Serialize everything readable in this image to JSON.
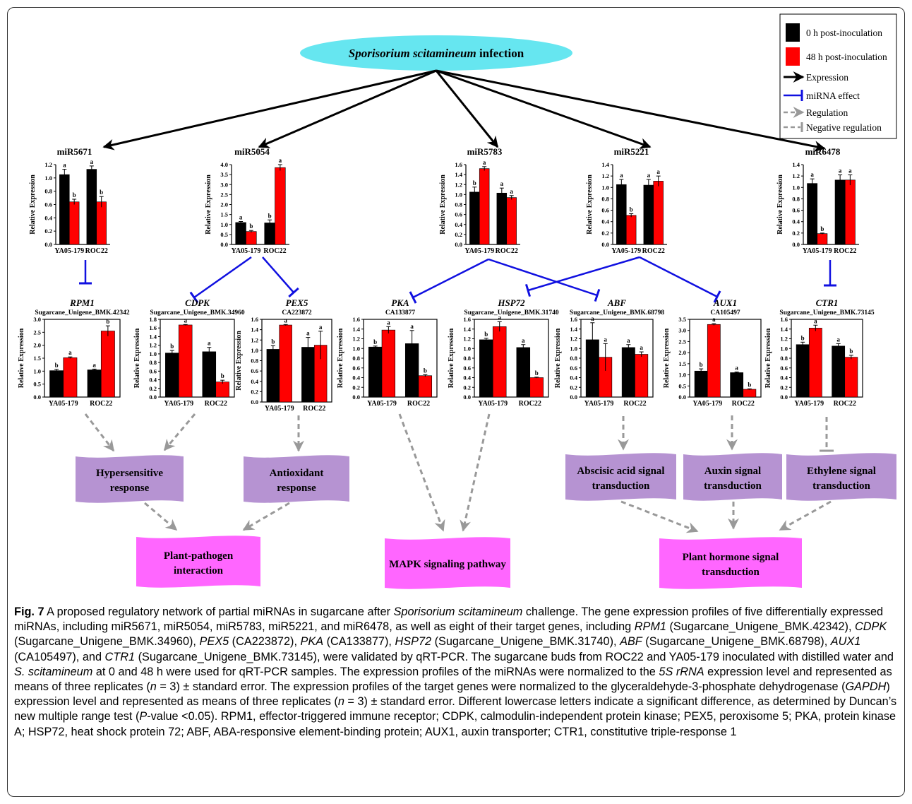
{
  "infection": {
    "species": "Sporisorium scitamineum",
    "suffix": " infection"
  },
  "legend": {
    "items": [
      {
        "label": "0 h post-inoculation",
        "kind": "black-square"
      },
      {
        "label": "48 h post-inoculation",
        "kind": "red-square"
      },
      {
        "label": "Expression",
        "kind": "black-arrow"
      },
      {
        "label": "miRNA effect",
        "kind": "blue-inhibit"
      },
      {
        "label": "Regulation",
        "kind": "gray-dashed-arrow"
      },
      {
        "label": "Negative regulation",
        "kind": "gray-dashed-inhibit"
      }
    ]
  },
  "colors": {
    "black_bar": "#000000",
    "red_bar": "#ff0000",
    "mirna_link": "#1010e0",
    "regulation": "#999999",
    "ellipse": "#66e6f0",
    "process_purple": "#b693d2",
    "pathway_magenta": "#ff66ff"
  },
  "chart_data": [
    {
      "type": "bar",
      "title": "miR5671",
      "ylabel": "Relative Expression",
      "categories": [
        "YA05-179",
        "ROC22"
      ],
      "ylim": [
        0,
        1.2
      ],
      "yticks": [
        "0.0",
        "0.2",
        "0.4",
        "0.6",
        "0.8",
        "1.0",
        "1.2"
      ],
      "series": [
        {
          "name": "0 h post-inoculation",
          "values": [
            1.05,
            1.13
          ],
          "errors": [
            0.08,
            0.05
          ],
          "letters": [
            "a",
            "a"
          ]
        },
        {
          "name": "48 h post-inoculation",
          "values": [
            0.64,
            0.64
          ],
          "errors": [
            0.04,
            0.08
          ],
          "letters": [
            "b",
            "b"
          ]
        }
      ]
    },
    {
      "type": "bar",
      "title": "miR5054",
      "ylabel": "Relative Expression",
      "categories": [
        "YA05-179",
        "ROC22"
      ],
      "ylim": [
        0,
        4.0
      ],
      "yticks": [
        "0.0",
        "0.5",
        "1.0",
        "1.5",
        "2.0",
        "2.5",
        "3.0",
        "3.5",
        "4.0"
      ],
      "series": [
        {
          "name": "0 h post-inoculation",
          "values": [
            1.1,
            1.08
          ],
          "errors": [
            0.05,
            0.15
          ],
          "letters": [
            "a",
            "b"
          ]
        },
        {
          "name": "48 h post-inoculation",
          "values": [
            0.65,
            3.85
          ],
          "errors": [
            0.05,
            0.15
          ],
          "letters": [
            "b",
            "a"
          ]
        }
      ]
    },
    {
      "type": "bar",
      "title": "miR5783",
      "ylabel": "Relative Expression",
      "categories": [
        "YA05-179",
        "ROC22"
      ],
      "ylim": [
        0,
        1.6
      ],
      "yticks": [
        "0.0",
        "0.2",
        "0.4",
        "0.6",
        "0.8",
        "1.0",
        "1.2",
        "1.4",
        "1.6"
      ],
      "series": [
        {
          "name": "0 h post-inoculation",
          "values": [
            1.05,
            1.03
          ],
          "errors": [
            0.1,
            0.1
          ],
          "letters": [
            "b",
            "a"
          ]
        },
        {
          "name": "48 h post-inoculation",
          "values": [
            1.52,
            0.94
          ],
          "errors": [
            0.04,
            0.04
          ],
          "letters": [
            "a",
            "a"
          ]
        }
      ]
    },
    {
      "type": "bar",
      "title": "miR5221",
      "ylabel": "Relative Expression",
      "categories": [
        "YA05-179",
        "ROC22"
      ],
      "ylim": [
        0,
        1.4
      ],
      "yticks": [
        "0.0",
        "0.2",
        "0.4",
        "0.6",
        "0.8",
        "1.0",
        "1.2",
        "1.4"
      ],
      "series": [
        {
          "name": "0 h post-inoculation",
          "values": [
            1.05,
            1.04
          ],
          "errors": [
            0.09,
            0.1
          ],
          "letters": [
            "a",
            "a"
          ]
        },
        {
          "name": "48 h post-inoculation",
          "values": [
            0.51,
            1.11
          ],
          "errors": [
            0.03,
            0.09
          ],
          "letters": [
            "b",
            "a"
          ]
        }
      ]
    },
    {
      "type": "bar",
      "title": "miR6478",
      "ylabel": "Relative Expression",
      "categories": [
        "YA05-179",
        "ROC22"
      ],
      "ylim": [
        0,
        1.4
      ],
      "yticks": [
        "0.0",
        "0.2",
        "0.4",
        "0.6",
        "0.8",
        "1.0",
        "1.2",
        "1.4"
      ],
      "series": [
        {
          "name": "0 h post-inoculation",
          "values": [
            1.07,
            1.13
          ],
          "errors": [
            0.08,
            0.09
          ],
          "letters": [
            "a",
            "a"
          ]
        },
        {
          "name": "48 h post-inoculation",
          "values": [
            0.19,
            1.13
          ],
          "errors": [
            0.01,
            0.09
          ],
          "letters": [
            "b",
            "a"
          ]
        }
      ]
    },
    {
      "type": "bar",
      "title": "RPM1",
      "subtitle": "Sugarcane_Unigene_BMK.42342",
      "ylabel": "Relative Expression",
      "categories": [
        "YA05-179",
        "ROC22"
      ],
      "ylim": [
        0,
        3.0
      ],
      "yticks": [
        "0.0",
        "0.5",
        "1.0",
        "1.5",
        "2.0",
        "2.5",
        "3.0"
      ],
      "series": [
        {
          "name": "0 h post-inoculation",
          "values": [
            1.02,
            1.05
          ],
          "errors": [
            0.05,
            0.03
          ],
          "letters": [
            "b",
            "a"
          ]
        },
        {
          "name": "48 h post-inoculation",
          "values": [
            1.52,
            2.55
          ],
          "errors": [
            0.03,
            0.2
          ],
          "letters": [
            "a",
            "b"
          ]
        }
      ]
    },
    {
      "type": "bar",
      "title": "CDPK",
      "subtitle": "Sugarcane_Unigene_BMK.34960",
      "ylabel": "Relative Expression",
      "categories": [
        "YA05-179",
        "ROC22"
      ],
      "ylim": [
        0,
        1.8
      ],
      "yticks": [
        "0.0",
        "0.2",
        "0.4",
        "0.6",
        "0.8",
        "1.0",
        "1.2",
        "1.4",
        "1.6",
        "1.8"
      ],
      "series": [
        {
          "name": "0 h post-inoculation",
          "values": [
            1.02,
            1.05
          ],
          "errors": [
            0.06,
            0.1
          ],
          "letters": [
            "b",
            "a"
          ]
        },
        {
          "name": "48 h post-inoculation",
          "values": [
            1.67,
            0.35
          ],
          "errors": [
            0.01,
            0.04
          ],
          "letters": [
            "a",
            "b"
          ]
        }
      ]
    },
    {
      "type": "bar",
      "title": "PEX5",
      "subtitle": "CA223872",
      "ylabel": "Relative Expression",
      "categories": [
        "YA05-179",
        "ROC22"
      ],
      "ylim": [
        0,
        1.6
      ],
      "yticks": [
        "0.0",
        "0.2",
        "0.4",
        "0.6",
        "0.8",
        "1.0",
        "1.2",
        "1.4",
        "1.6"
      ],
      "series": [
        {
          "name": "0 h post-inoculation",
          "values": [
            1.02,
            1.06
          ],
          "errors": [
            0.07,
            0.19
          ],
          "letters": [
            "b",
            "a"
          ]
        },
        {
          "name": "48 h post-inoculation",
          "values": [
            1.49,
            1.1
          ],
          "errors": [
            0.01,
            0.27
          ],
          "letters": [
            "a",
            "a"
          ]
        }
      ]
    },
    {
      "type": "bar",
      "title": "PKA",
      "subtitle": "CA133877",
      "ylabel": "Relative Expression",
      "categories": [
        "YA05-179",
        "ROC22"
      ],
      "ylim": [
        0,
        1.6
      ],
      "yticks": [
        "0.0",
        "0.2",
        "0.4",
        "0.6",
        "0.8",
        "1.0",
        "1.2",
        "1.4",
        "1.6"
      ],
      "series": [
        {
          "name": "0 h post-inoculation",
          "values": [
            1.03,
            1.1
          ],
          "errors": [
            0.02,
            0.27
          ],
          "letters": [
            "b",
            "a"
          ]
        },
        {
          "name": "48 h post-inoculation",
          "values": [
            1.38,
            0.44
          ],
          "errors": [
            0.07,
            0.02
          ],
          "letters": [
            "a",
            "b"
          ]
        }
      ]
    },
    {
      "type": "bar",
      "title": "HSP72",
      "subtitle": "Sugarcane_Unigene_BMK.31740",
      "ylabel": "Relative Expression",
      "categories": [
        "YA05-179",
        "ROC22"
      ],
      "ylim": [
        0,
        1.6
      ],
      "yticks": [
        "0.0",
        "0.2",
        "0.4",
        "0.6",
        "0.8",
        "1.0",
        "1.2",
        "1.4",
        "1.6"
      ],
      "series": [
        {
          "name": "0 h post-inoculation",
          "values": [
            1.18,
            1.02
          ],
          "errors": [
            0.03,
            0.06
          ],
          "letters": [
            "b",
            "a"
          ]
        },
        {
          "name": "48 h post-inoculation",
          "values": [
            1.45,
            0.4
          ],
          "errors": [
            0.1,
            0.01
          ],
          "letters": [
            "a",
            "b"
          ]
        }
      ]
    },
    {
      "type": "bar",
      "title": "ABF",
      "subtitle": "Sugarcane_Unigene_BMK.68798",
      "ylabel": "Relative Expression",
      "categories": [
        "YA05-179",
        "ROC22"
      ],
      "ylim": [
        0,
        1.6
      ],
      "yticks": [
        "0.0",
        "0.2",
        "0.4",
        "0.6",
        "0.8",
        "1.0",
        "1.2",
        "1.4",
        "1.6"
      ],
      "series": [
        {
          "name": "0 h post-inoculation",
          "values": [
            1.18,
            1.02
          ],
          "errors": [
            0.35,
            0.06
          ],
          "letters": [
            "a",
            "a"
          ]
        },
        {
          "name": "48 h post-inoculation",
          "values": [
            0.82,
            0.88
          ],
          "errors": [
            0.28,
            0.05
          ],
          "letters": [
            "a",
            "a"
          ]
        }
      ]
    },
    {
      "type": "bar",
      "title": "AUX1",
      "subtitle": "CA105497",
      "ylabel": "Relative Expression",
      "categories": [
        "YA05-179",
        "ROC22"
      ],
      "ylim": [
        0,
        3.5
      ],
      "yticks": [
        "0.0",
        "0.5",
        "1.0",
        "1.5",
        "2.0",
        "2.5",
        "3.0",
        "3.5"
      ],
      "series": [
        {
          "name": "0 h post-inoculation",
          "values": [
            1.17,
            1.1
          ],
          "errors": [
            0.1,
            0.03
          ],
          "letters": [
            "b",
            "a"
          ]
        },
        {
          "name": "48 h post-inoculation",
          "values": [
            3.27,
            0.35
          ],
          "errors": [
            0.04,
            0.02
          ],
          "letters": [
            "a",
            "b"
          ]
        }
      ]
    },
    {
      "type": "bar",
      "title": "CTR1",
      "subtitle": "Sugarcane_Unigene_BMK.73145",
      "ylabel": "Relative Expression",
      "categories": [
        "YA05-179",
        "ROC22"
      ],
      "ylim": [
        0,
        1.6
      ],
      "yticks": [
        "0.0",
        "0.2",
        "0.4",
        "0.6",
        "0.8",
        "1.0",
        "1.2",
        "1.4",
        "1.6"
      ],
      "series": [
        {
          "name": "0 h post-inoculation",
          "values": [
            1.08,
            1.05
          ],
          "errors": [
            0.05,
            0.05
          ],
          "letters": [
            "b",
            "a"
          ]
        },
        {
          "name": "48 h post-inoculation",
          "values": [
            1.42,
            0.82
          ],
          "errors": [
            0.06,
            0.04
          ],
          "letters": [
            "a",
            "b"
          ]
        }
      ]
    }
  ],
  "processes": [
    {
      "label": "Hypersensitive response",
      "lines": [
        "Hypersensitive",
        "response"
      ]
    },
    {
      "label": "Antioxidant response",
      "lines": [
        "Antioxidant",
        "response"
      ]
    },
    {
      "label": "Abscisic acid signal transduction",
      "lines": [
        "Abscisic acid signal",
        "transduction"
      ]
    },
    {
      "label": "Auxin signal transduction",
      "lines": [
        "Auxin signal",
        "transduction"
      ]
    },
    {
      "label": "Ethylene signal transduction",
      "lines": [
        "Ethylene signal",
        "transduction"
      ]
    }
  ],
  "pathways": [
    {
      "label": "Plant-pathogen interaction",
      "lines": [
        "Plant-pathogen",
        "interaction"
      ]
    },
    {
      "label": "MAPK signaling pathway",
      "lines": [
        "MAPK signaling pathway"
      ]
    },
    {
      "label": "Plant hormone signal transduction",
      "lines": [
        "Plant hormone signal",
        "transduction"
      ]
    }
  ],
  "caption": {
    "fig": "Fig. 7",
    "segments": [
      {
        "t": " A proposed regulatory network of partial miRNAs in sugarcane after ",
        "i": false
      },
      {
        "t": "Sporisorium scitamineum",
        "i": true
      },
      {
        "t": " challenge. The gene expression profiles of five differentially expressed miRNAs, including miR5671, miR5054, miR5783, miR5221, and miR6478, as well as eight of their target genes, including ",
        "i": false
      },
      {
        "t": "RPM1",
        "i": true
      },
      {
        "t": " (Sugarcane_Unigene_BMK.42342), ",
        "i": false
      },
      {
        "t": "CDPK",
        "i": true
      },
      {
        "t": " (Sugarcane_Unigene_BMK.34960), ",
        "i": false
      },
      {
        "t": "PEX5",
        "i": true
      },
      {
        "t": " (CA223872), ",
        "i": false
      },
      {
        "t": "PKA",
        "i": true
      },
      {
        "t": " (CA133877), ",
        "i": false
      },
      {
        "t": "HSP72",
        "i": true
      },
      {
        "t": " (Sugarcane_Unigene_BMK.31740), ",
        "i": false
      },
      {
        "t": "ABF",
        "i": true
      },
      {
        "t": " (Sugarcane_Unigene_BMK.68798), ",
        "i": false
      },
      {
        "t": "AUX1",
        "i": true
      },
      {
        "t": " (CA105497), and ",
        "i": false
      },
      {
        "t": "CTR1",
        "i": true
      },
      {
        "t": " (Sugarcane_Unigene_BMK.73145), were validated by qRT-PCR. The sugarcane buds from ROC22 and YA05-179 inoculated with distilled water and ",
        "i": false
      },
      {
        "t": "S. scitamineum",
        "i": true
      },
      {
        "t": " at 0 and 48 h were used for qRT-PCR samples. The expression profiles of the miRNAs were normalized to the ",
        "i": false
      },
      {
        "t": "5S rRNA",
        "i": true
      },
      {
        "t": " expression level and represented as means of three replicates (",
        "i": false
      },
      {
        "t": "n",
        "i": true
      },
      {
        "t": " = 3) ± standard error. The expression profiles of the target genes were normalized to the glyceraldehyde-3-phosphate dehydrogenase (",
        "i": false
      },
      {
        "t": "GAPDH",
        "i": true
      },
      {
        "t": ") expression level and represented as means of three replicates (",
        "i": false
      },
      {
        "t": "n",
        "i": true
      },
      {
        "t": " = 3) ± standard error. Different lowercase letters indicate a significant difference, as determined by Duncan’s new multiple range test (",
        "i": false
      },
      {
        "t": "P",
        "i": true
      },
      {
        "t": "-value <0.05). RPM1, effector-triggered immune receptor; CDPK, calmodulin-independent protein kinase; PEX5, peroxisome 5; PKA, protein kinase A; HSP72, heat shock protein 72; ABF, ABA-responsive element-binding protein; AUX1, auxin transporter; CTR1, constitutive triple-response 1",
        "i": false
      }
    ]
  }
}
